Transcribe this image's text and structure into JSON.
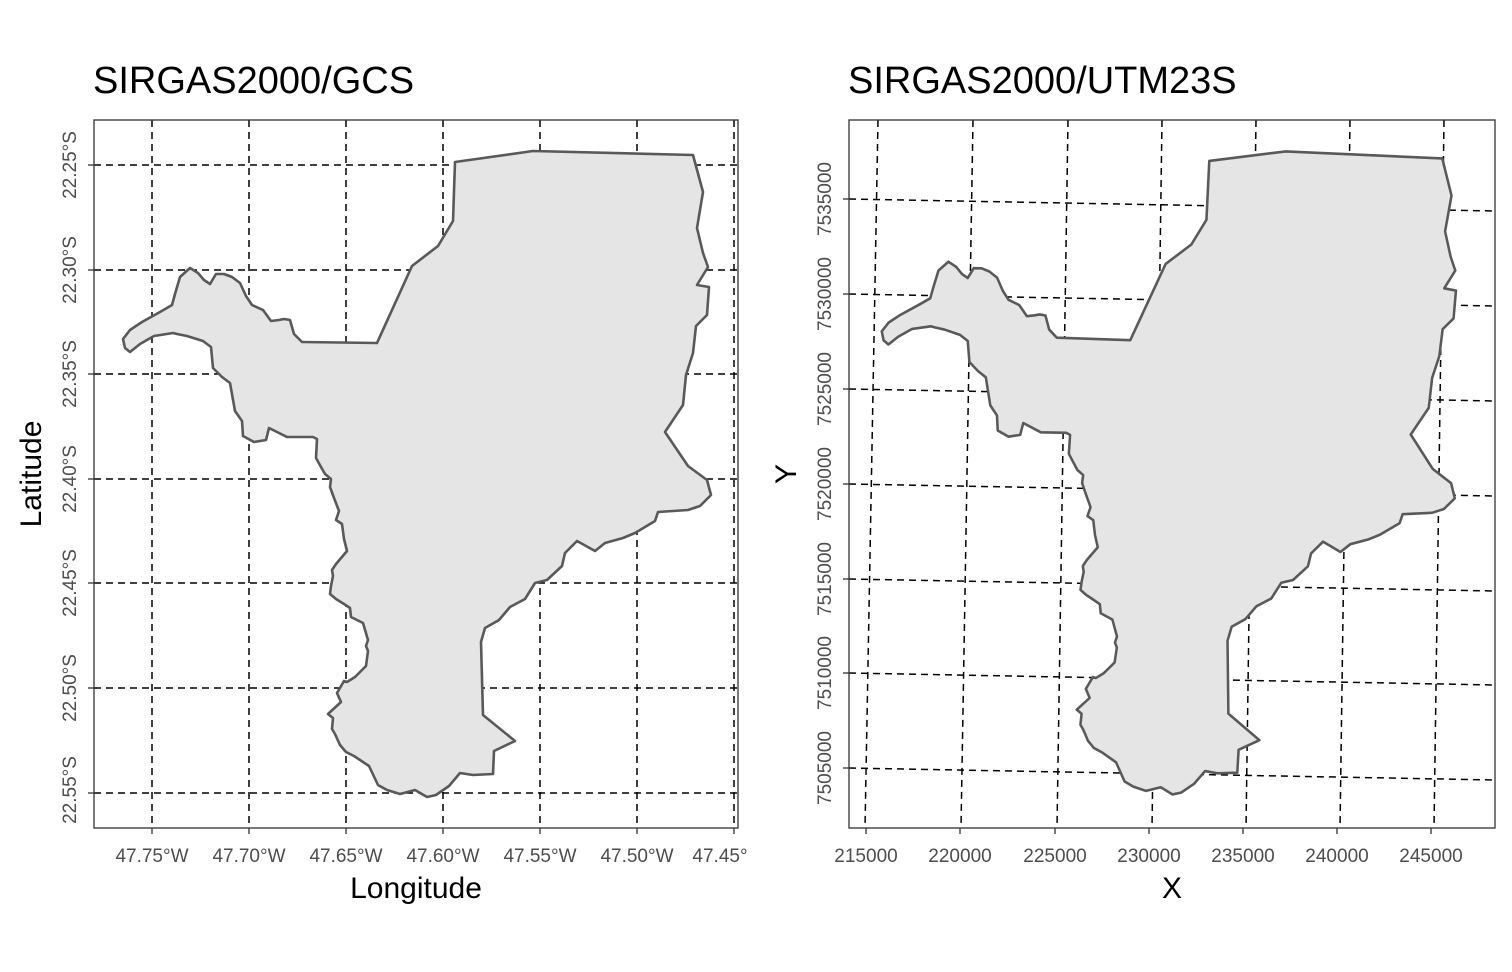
{
  "panels": [
    {
      "title": "SIRGAS2000/GCS",
      "xlabel": "Longitude",
      "ylabel": "Latitude",
      "x_ticks": [
        "47.75°W",
        "47.70°W",
        "47.65°W",
        "47.60°W",
        "47.55°W",
        "47.50°W",
        "47.45°"
      ],
      "y_ticks": [
        "22.25°S",
        "22.30°S",
        "22.35°S",
        "22.40°S",
        "22.45°S",
        "22.50°S",
        "22.55°S"
      ]
    },
    {
      "title": "SIRGAS2000/UTM23S",
      "xlabel": "X",
      "ylabel": "Y",
      "x_ticks": [
        "215000",
        "220000",
        "225000",
        "230000",
        "235000",
        "240000",
        "245000"
      ],
      "y_ticks": [
        "7535000",
        "7530000",
        "7525000",
        "7520000",
        "7515000",
        "7510000",
        "7505000"
      ]
    }
  ],
  "colors": {
    "polygon_fill": "#e5e5e5",
    "polygon_stroke": "#595959",
    "graticule": "#000000",
    "panel_border": "#333333",
    "tick_text": "#4d4d4d"
  }
}
